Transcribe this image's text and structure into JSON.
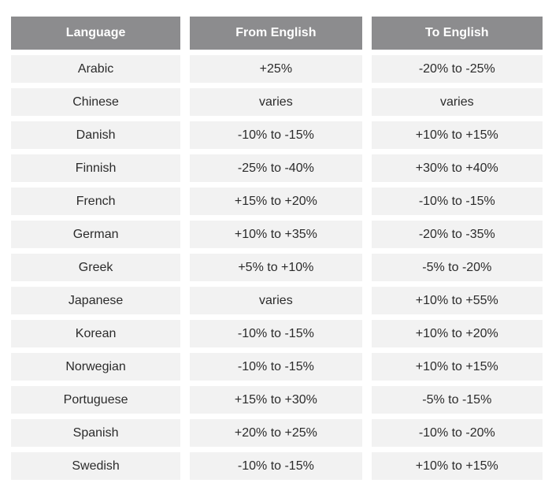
{
  "table": {
    "headers": [
      "Language",
      "From English",
      "To English"
    ],
    "rows": [
      [
        "Arabic",
        "+25%",
        "-20% to -25%"
      ],
      [
        "Chinese",
        "varies",
        "varies"
      ],
      [
        "Danish",
        "-10% to -15%",
        "+10% to +15%"
      ],
      [
        "Finnish",
        "-25% to -40%",
        "+30% to +40%"
      ],
      [
        "French",
        "+15% to +20%",
        "-10% to -15%"
      ],
      [
        "German",
        "+10% to +35%",
        "-20% to -35%"
      ],
      [
        "Greek",
        "+5% to +10%",
        "-5% to -20%"
      ],
      [
        "Japanese",
        "varies",
        "+10% to +55%"
      ],
      [
        "Korean",
        "-10% to -15%",
        "+10% to +20%"
      ],
      [
        "Norwegian",
        "-10% to -15%",
        "+10% to +15%"
      ],
      [
        "Portuguese",
        "+15% to +30%",
        "-5% to -15%"
      ],
      [
        "Spanish",
        "+20% to +25%",
        "-10% to -20%"
      ],
      [
        "Swedish",
        "-10% to -15%",
        "+10% to +15%"
      ]
    ]
  },
  "colors": {
    "header_bg": "#8c8c8e",
    "header_text": "#ffffff",
    "cell_bg": "#f2f2f2",
    "cell_text": "#2b2b2b"
  }
}
